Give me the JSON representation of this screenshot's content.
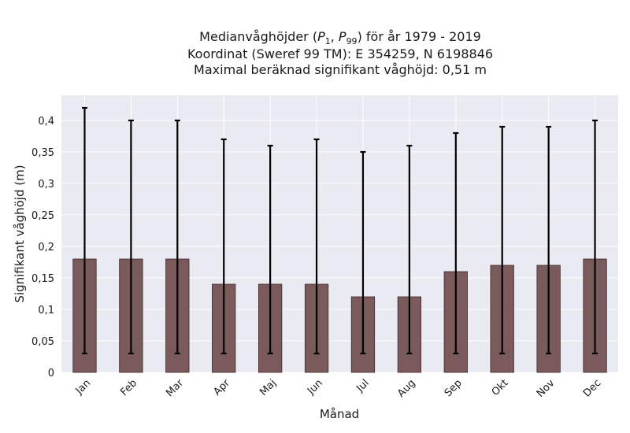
{
  "chart_data": {
    "type": "bar",
    "title_lines": [
      "Medianvåghöjder (P1, P99) för år 1979 - 2019",
      "Koordinat (Sweref 99 TM): E 354259, N 6198846",
      "Maximal beräknad signifikant våghöjd: 0,51 m"
    ],
    "title_math": {
      "prefix": "Medianvåghöjder (",
      "p1_base": "P",
      "p1_sub": "1",
      "sep": ", ",
      "p99_base": "P",
      "p99_sub": "99",
      "suffix": ") för år 1979 - 2019"
    },
    "xlabel": "Månad",
    "ylabel": "Signifikant våghöjd (m)",
    "categories": [
      "Jan",
      "Feb",
      "Mar",
      "Apr",
      "Maj",
      "Jun",
      "Jul",
      "Aug",
      "Sep",
      "Okt",
      "Nov",
      "Dec"
    ],
    "median": [
      0.18,
      0.18,
      0.18,
      0.14,
      0.14,
      0.14,
      0.12,
      0.12,
      0.16,
      0.17,
      0.17,
      0.18
    ],
    "p1": [
      0.03,
      0.03,
      0.03,
      0.03,
      0.03,
      0.03,
      0.03,
      0.03,
      0.03,
      0.03,
      0.03,
      0.03
    ],
    "p99": [
      0.42,
      0.4,
      0.4,
      0.37,
      0.36,
      0.37,
      0.35,
      0.36,
      0.38,
      0.39,
      0.39,
      0.4
    ],
    "ylim": [
      0,
      0.44
    ],
    "yticks": [
      0,
      0.05,
      0.1,
      0.15,
      0.2,
      0.25,
      0.3,
      0.35,
      0.4
    ],
    "ytick_labels": [
      "0",
      "0,05",
      "0,1",
      "0,15",
      "0,2",
      "0,25",
      "0,3",
      "0,35",
      "0,4"
    ],
    "grid": true,
    "colors": {
      "bar": "#7a5a5a",
      "bar_edge": "#3d2a2a",
      "error": "#000000",
      "background": "#eaeaf2",
      "grid": "#ffffff"
    }
  }
}
